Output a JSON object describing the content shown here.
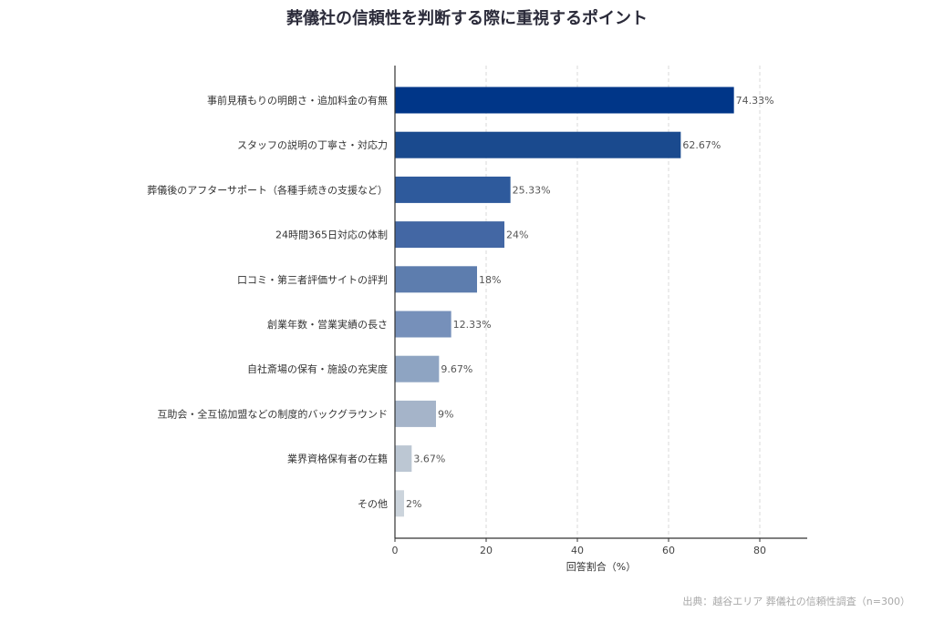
{
  "chart_data": {
    "type": "bar",
    "orientation": "horizontal",
    "title": "葬儀社の信頼性を判断する際に重視するポイント",
    "xlabel": "回答割合（%）",
    "ylabel": "",
    "xlim": [
      0,
      90
    ],
    "xticks": [
      0,
      20,
      40,
      60,
      80
    ],
    "grid": "x-dashed",
    "categories": [
      "事前見積もりの明朗さ・追加料金の有無",
      "スタッフの説明の丁寧さ・対応力",
      "葬儀後のアフターサポート（各種手続きの支援など）",
      "24時間365日対応の体制",
      "口コミ・第三者評価サイトの評判",
      "創業年数・営業実績の長さ",
      "自社斎場の保有・施設の充実度",
      "互助会・全互協加盟などの制度的バックグラウンド",
      "業界資格保有者の在籍",
      "その他"
    ],
    "values": [
      74.33,
      62.67,
      25.33,
      24,
      18,
      12.33,
      9.67,
      9,
      3.67,
      2
    ],
    "value_labels": [
      "74.33%",
      "62.67%",
      "25.33%",
      "24%",
      "18%",
      "12.33%",
      "9.67%",
      "9%",
      "3.67%",
      "2%"
    ],
    "colors": [
      "#003688",
      "#1a4a8e",
      "#2e5a9c",
      "#4367a4",
      "#5d7dae",
      "#7690ba",
      "#8ea4c2",
      "#a5b4c9",
      "#bcc7d3",
      "#ccd4dc"
    ],
    "source": "出典：越谷エリア 葬儀社の信頼性調査（n=300）"
  }
}
